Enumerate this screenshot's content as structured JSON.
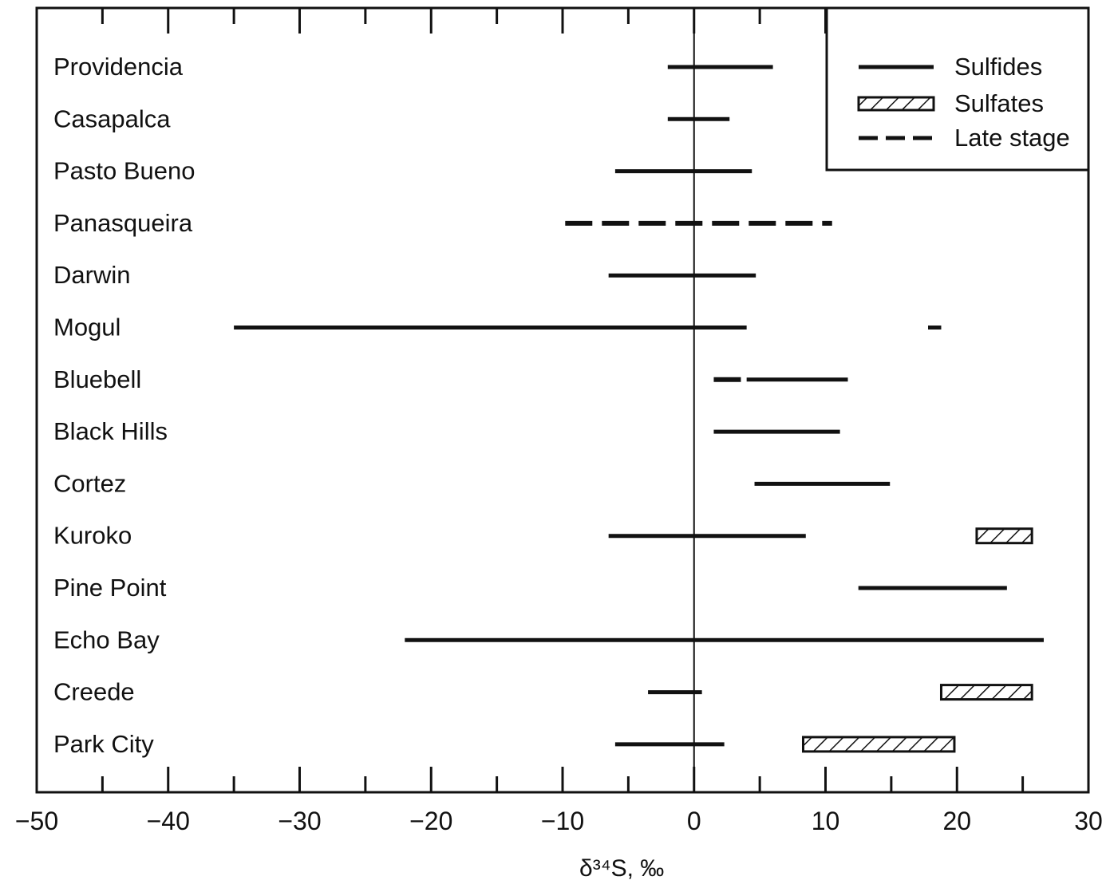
{
  "chart_data": {
    "type": "range",
    "title": "",
    "xlabel": "δ³⁴S, ‰",
    "xlim": [
      -50,
      30
    ],
    "x_ticks": [
      -50,
      -40,
      -30,
      -20,
      -10,
      0,
      10,
      20,
      30
    ],
    "x_tick_labels": [
      "−50",
      "−40",
      "−30",
      "−20",
      "−10",
      "0",
      "10",
      "20",
      "30"
    ],
    "legend": {
      "position": "top-right",
      "entries": [
        {
          "label": "Sulfides",
          "style": "solid"
        },
        {
          "label": "Sulfates",
          "style": "hatched"
        },
        {
          "label": "Late stage",
          "style": "dashed"
        }
      ]
    },
    "sites": [
      {
        "name": "Providencia",
        "ranges": [
          {
            "kind": "sulfide",
            "from": -2,
            "to": 6
          }
        ]
      },
      {
        "name": "Casapalca",
        "ranges": [
          {
            "kind": "sulfide",
            "from": -2,
            "to": 2.7
          }
        ]
      },
      {
        "name": "Pasto Bueno",
        "ranges": [
          {
            "kind": "sulfide",
            "from": -6,
            "to": 4.4
          }
        ]
      },
      {
        "name": "Panasqueira",
        "ranges": [
          {
            "kind": "late",
            "from": -9.8,
            "to": 10.5
          }
        ]
      },
      {
        "name": "Darwin",
        "ranges": [
          {
            "kind": "sulfide",
            "from": -6.5,
            "to": 4.7
          }
        ]
      },
      {
        "name": "Mogul",
        "ranges": [
          {
            "kind": "sulfide",
            "from": -35,
            "to": 4
          },
          {
            "kind": "sulfide",
            "from": 17.8,
            "to": 18.8
          }
        ]
      },
      {
        "name": "Bluebell",
        "ranges": [
          {
            "kind": "late",
            "from": 1.5,
            "to": 4
          },
          {
            "kind": "sulfide",
            "from": 4,
            "to": 11.7
          }
        ]
      },
      {
        "name": "Black Hills",
        "ranges": [
          {
            "kind": "sulfide",
            "from": 1.5,
            "to": 11.1
          }
        ]
      },
      {
        "name": "Cortez",
        "ranges": [
          {
            "kind": "sulfide",
            "from": 4.6,
            "to": 14.9
          }
        ]
      },
      {
        "name": "Kuroko",
        "ranges": [
          {
            "kind": "sulfide",
            "from": -6.5,
            "to": 8.5
          },
          {
            "kind": "sulfate",
            "from": 21.5,
            "to": 25.7
          }
        ]
      },
      {
        "name": "Pine Point",
        "ranges": [
          {
            "kind": "sulfide",
            "from": 12.5,
            "to": 23.8
          }
        ]
      },
      {
        "name": "Echo Bay",
        "ranges": [
          {
            "kind": "sulfide",
            "from": -22,
            "to": 26.6
          }
        ]
      },
      {
        "name": "Creede",
        "ranges": [
          {
            "kind": "sulfide",
            "from": -3.5,
            "to": 0.6
          },
          {
            "kind": "sulfate",
            "from": 18.8,
            "to": 25.7
          }
        ]
      },
      {
        "name": "Park City",
        "ranges": [
          {
            "kind": "sulfide",
            "from": -6,
            "to": 2.3
          },
          {
            "kind": "sulfate",
            "from": 8.3,
            "to": 19.8
          }
        ]
      }
    ]
  }
}
